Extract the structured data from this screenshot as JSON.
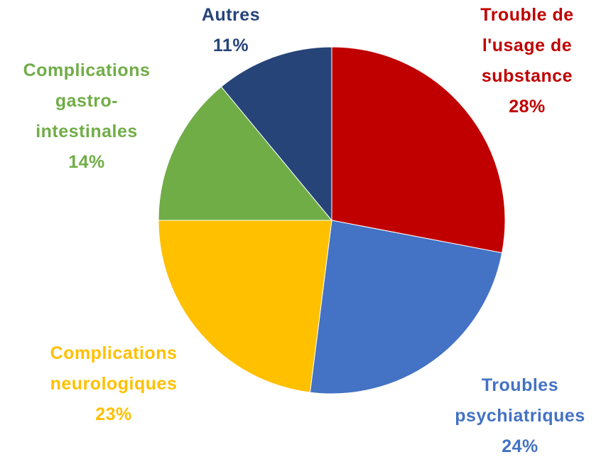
{
  "chart_data": {
    "type": "pie",
    "categories": [
      "Trouble de l'usage de substance",
      "Troubles psychiatriques",
      "Complications neurologiques",
      "Complications gastro-intestinales",
      "Autres"
    ],
    "values": [
      28,
      24,
      23,
      14,
      11
    ],
    "value_labels": [
      "28%",
      "24%",
      "23%",
      "14%",
      "11%"
    ],
    "colors": [
      "#c00000",
      "#4472c4",
      "#ffc000",
      "#70ad47",
      "#264478"
    ]
  }
}
